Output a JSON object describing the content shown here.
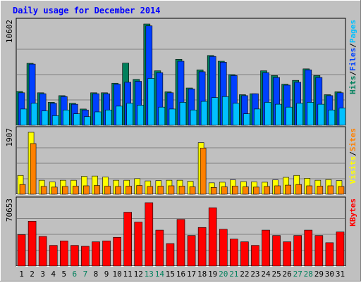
{
  "chart_data": {
    "type": "bar",
    "title": "Daily usage for December 2014",
    "categories": [
      "1",
      "2",
      "3",
      "4",
      "5",
      "6",
      "7",
      "8",
      "9",
      "10",
      "11",
      "12",
      "13",
      "14",
      "15",
      "16",
      "17",
      "18",
      "19",
      "20",
      "21",
      "22",
      "23",
      "24",
      "25",
      "26",
      "27",
      "28",
      "29",
      "30",
      "31"
    ],
    "weekend_days": [
      "6",
      "7",
      "13",
      "14",
      "20",
      "21",
      "27",
      "28"
    ],
    "panels": [
      {
        "id": "hits-files-pages",
        "max_label": "10602",
        "ylim": [
          0,
          10602
        ],
        "legend": [
          "Pages",
          "Files",
          "Hits"
        ],
        "series": [
          {
            "name": "Hits",
            "values": [
              3540,
              6480,
              3400,
              2400,
              3100,
              2300,
              1700,
              3400,
              3400,
              4400,
              6500,
              4800,
              10600,
              5700,
              3500,
              6900,
              3900,
              5800,
              7300,
              6700,
              5300,
              3200,
              3300,
              5700,
              5200,
              4300,
              4700,
              5900,
              5200,
              3200,
              3500
            ]
          },
          {
            "name": "Files",
            "values": [
              3400,
              6400,
              3300,
              2300,
              3000,
              2200,
              1600,
              3300,
              3300,
              4300,
              4500,
              4600,
              10400,
              5500,
              3400,
              6700,
              3800,
              5600,
              7200,
              6600,
              5200,
              3100,
              3300,
              5500,
              5000,
              4200,
              4500,
              5800,
              5000,
              3100,
              3400
            ]
          },
          {
            "name": "Pages",
            "values": [
              1700,
              2300,
              1500,
              1000,
              1600,
              1200,
              900,
              1400,
              1600,
              2000,
              2300,
              2100,
              4900,
              1900,
              1700,
              2400,
              1600,
              2500,
              2900,
              3000,
              2300,
              1200,
              1700,
              2400,
              2200,
              1900,
              2300,
              2400,
              2200,
              1600,
              1800
            ]
          }
        ]
      },
      {
        "id": "visits-sites",
        "max_label": "1907",
        "ylim": [
          0,
          1907
        ],
        "legend": [
          "Sites",
          "Visits"
        ],
        "series": [
          {
            "name": "Visits",
            "values": [
              580,
              1907,
              430,
              380,
              430,
              430,
              550,
              560,
              530,
              430,
              430,
              480,
              410,
              420,
              430,
              430,
              400,
              1590,
              350,
              370,
              440,
              390,
              380,
              370,
              440,
              520,
              580,
              490,
              430,
              450,
              420
            ]
          },
          {
            "name": "Sites",
            "values": [
              300,
              1560,
              240,
              220,
              240,
              250,
              260,
              270,
              250,
              240,
              250,
              270,
              240,
              250,
              260,
              250,
              230,
              1420,
              210,
              230,
              250,
              230,
              220,
              240,
              260,
              280,
              300,
              260,
              250,
              260,
              240
            ]
          }
        ]
      },
      {
        "id": "kbytes",
        "max_label": "70653",
        "ylim": [
          0,
          70653
        ],
        "legend": [
          "KBytes"
        ],
        "series": [
          {
            "name": "KBytes",
            "values": [
              35000,
              50000,
              33000,
              23000,
              28000,
              23000,
              22000,
              27000,
              28000,
              32000,
              60000,
              49000,
              70653,
              40000,
              25000,
              52000,
              34000,
              43000,
              65000,
              41000,
              30000,
              27000,
              23000,
              40000,
              34000,
              27000,
              34000,
              40000,
              34000,
              26000,
              38000
            ]
          }
        ]
      }
    ],
    "colors": {
      "Hits": "#00805c",
      "Files": "#0040ff",
      "Pages": "#00c0ff",
      "Visits": "#ffff00",
      "Sites": "#ff8000",
      "KBytes": "#ff0000",
      "title": "#0000ff",
      "weekday_label": "#000000",
      "weekend_label": "#00805c",
      "plot_bg": "#c0c0c0",
      "frame_bg": "#c0c0c0"
    }
  }
}
